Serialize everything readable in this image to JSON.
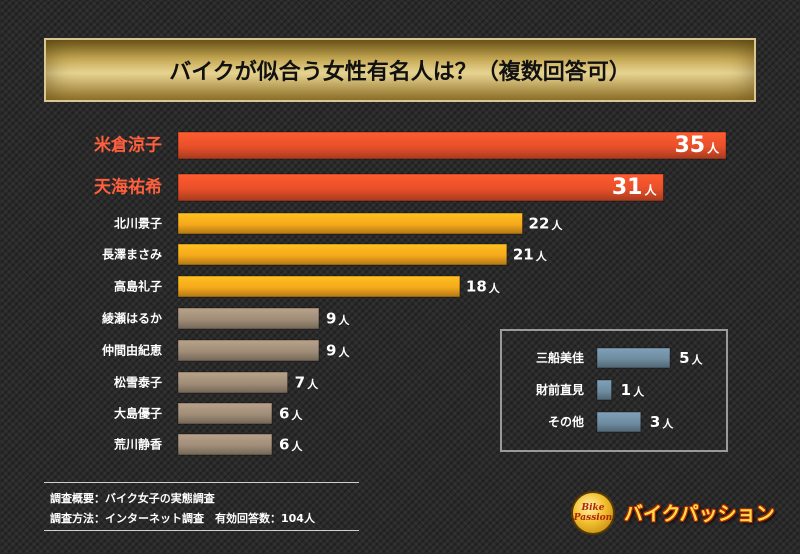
{
  "chart_data": {
    "type": "bar",
    "orientation": "horizontal",
    "title": "バイクが似合う女性有名人は？（複数回答可）",
    "unit": "人",
    "categories": [
      "米倉涼子",
      "天海祐希",
      "北川景子",
      "長澤まさみ",
      "高島礼子",
      "綾瀬はるか",
      "仲間由紀恵",
      "松雪泰子",
      "大島優子",
      "荒川静香"
    ],
    "values": [
      35,
      31,
      22,
      21,
      18,
      9,
      9,
      7,
      6,
      6
    ],
    "inset": {
      "categories": [
        "三船美佳",
        "財前直見",
        "その他"
      ],
      "values": [
        5,
        1,
        3
      ]
    },
    "colors": {
      "top": "#e8502a",
      "high": "#f5a81c",
      "mid": "#a08d78",
      "low": "#6f8ca0",
      "top_label": "#ff5f3c"
    }
  },
  "notes": [
    "調査概要：バイク女子の実態調査",
    "調査方法：インターネット調査　有効回答数：104人"
  ],
  "logo": {
    "badge_top": "Bike",
    "badge_bottom": "Passion",
    "name": "バイクパッション"
  }
}
